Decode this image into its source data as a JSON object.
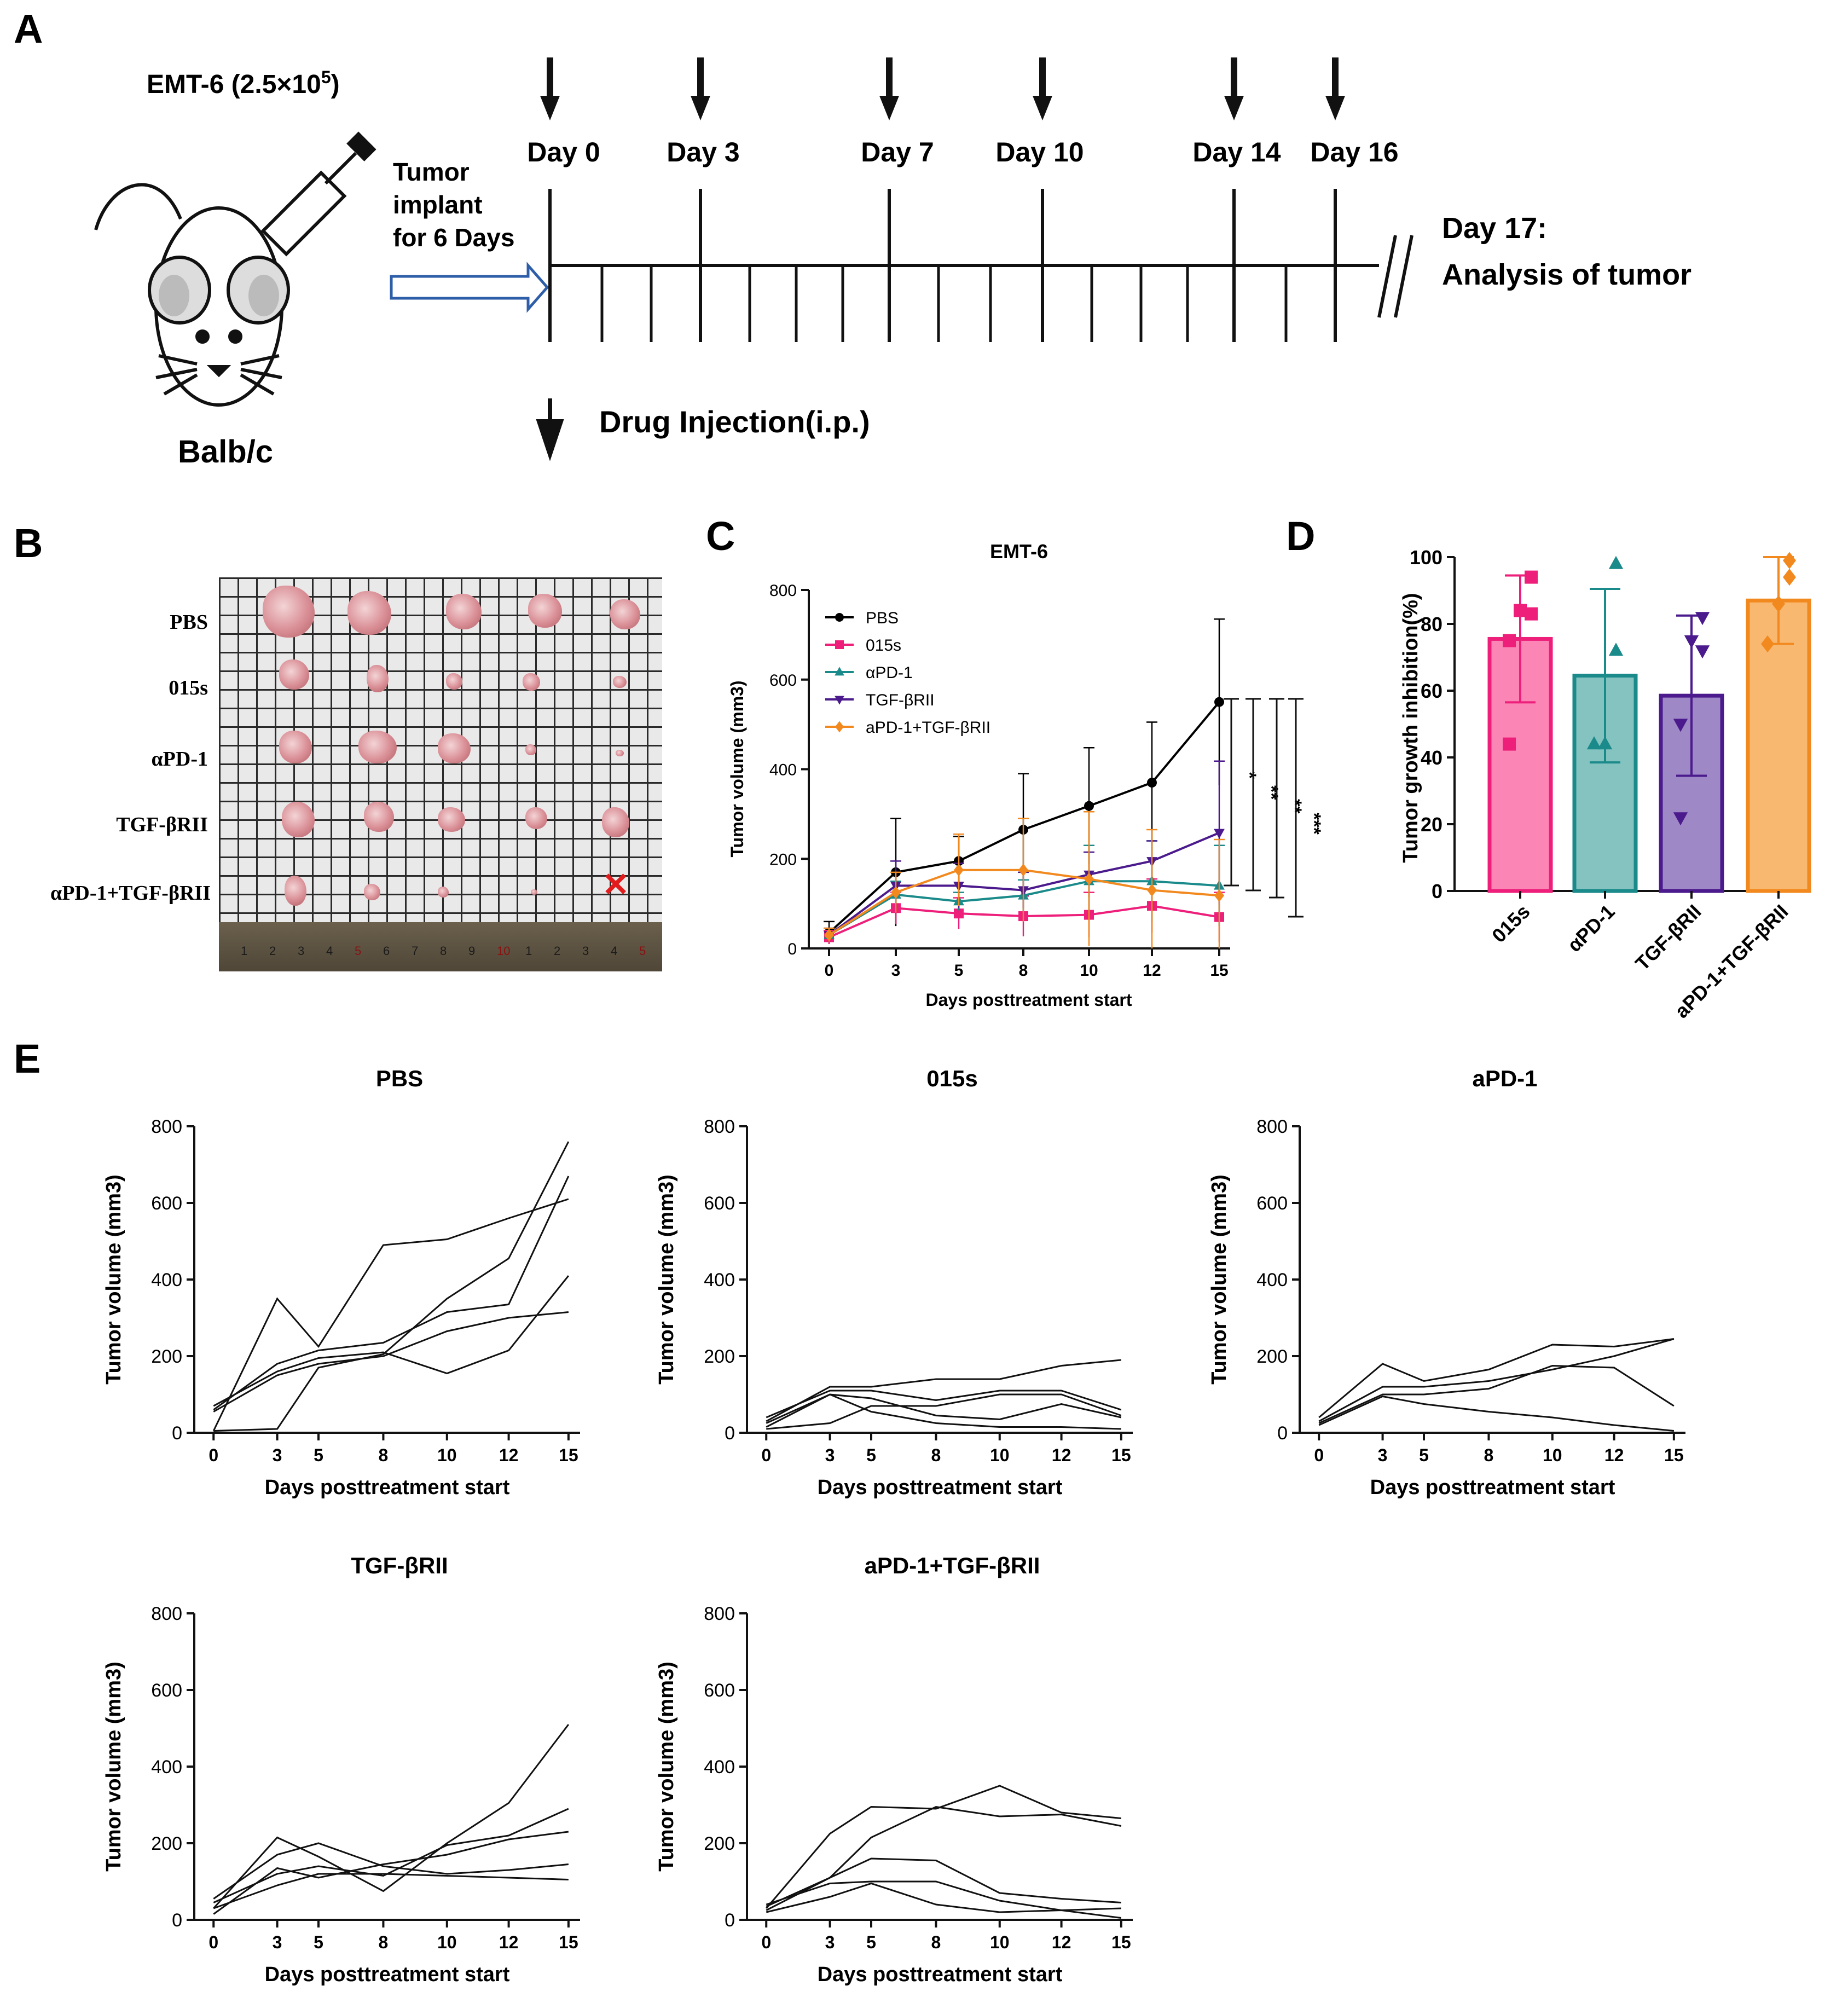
{
  "panel_letters": {
    "a": "A",
    "b": "B",
    "c": "C",
    "d": "D",
    "e": "E"
  },
  "panel_a": {
    "cell_line": "EMT-6 (2.5×10",
    "cell_exp": "5",
    "cell_close": ")",
    "mouse_strain": "Balb/c",
    "implant_lines": [
      "Tumor",
      "implant",
      "for 6 Days"
    ],
    "days": [
      "Day 0",
      "Day 3",
      "Day 7",
      "Day 10",
      "Day 14",
      "Day 16"
    ],
    "endpoint": [
      "Day 17:",
      "Analysis of tumor"
    ],
    "legend": "Drug Injection(i.p.)"
  },
  "panel_b": {
    "rows": [
      "PBS",
      "015s",
      "αPD-1",
      "TGF-βRII",
      "αPD-1+TGF-βRII"
    ],
    "ruler_marks": [
      "1",
      "2",
      "3",
      "4",
      "5",
      "6",
      "7",
      "8",
      "9",
      "10",
      "1",
      "2",
      "3",
      "4",
      "5"
    ],
    "removed_mark": "✕"
  },
  "chart_data": [
    {
      "id": "C",
      "type": "line",
      "title": "EMT-6",
      "xlabel": "Days posttreatment start",
      "ylabel": "Tumor volume (mm3)",
      "x": [
        0,
        3,
        5,
        8,
        10,
        12,
        15
      ],
      "ylim": [
        0,
        800
      ],
      "yticks": [
        0,
        200,
        400,
        600,
        800
      ],
      "series": [
        {
          "name": "PBS",
          "color": "#000000",
          "marker": "circle",
          "values": [
            35,
            170,
            195,
            265,
            318,
            370,
            550
          ],
          "err": [
            25,
            120,
            55,
            125,
            130,
            135,
            185
          ]
        },
        {
          "name": "015s",
          "color": "#ee1f7a",
          "marker": "square",
          "values": [
            25,
            90,
            78,
            72,
            75,
            95,
            70
          ],
          "err": [
            15,
            35,
            35,
            45,
            50,
            60,
            55
          ]
        },
        {
          "name": "αPD-1",
          "color": "#1a8a8a",
          "marker": "triangle",
          "values": [
            30,
            120,
            105,
            118,
            150,
            150,
            140
          ],
          "err": [
            15,
            30,
            20,
            35,
            80,
            90,
            90
          ]
        },
        {
          "name": "TGF-βRII",
          "color": "#4b1a8c",
          "marker": "triangle-down",
          "values": [
            30,
            140,
            140,
            130,
            165,
            195,
            258
          ],
          "err": [
            15,
            55,
            50,
            40,
            50,
            45,
            160
          ]
        },
        {
          "name": "aPD-1+TGF-βRII",
          "color": "#f2891f",
          "marker": "diamond",
          "values": [
            30,
            125,
            175,
            175,
            155,
            130,
            118
          ],
          "err": [
            15,
            45,
            80,
            115,
            150,
            135,
            125
          ]
        }
      ],
      "significance": [
        "*",
        "**",
        "**",
        "***"
      ]
    },
    {
      "id": "D",
      "type": "bar",
      "ylabel": "Tumor growth inhibition(%)",
      "categories": [
        "015s",
        "αPD-1",
        "TGF-βRII",
        "aPD-1+TGF-βRII"
      ],
      "values": [
        75.5,
        64.5,
        58.5,
        87
      ],
      "err": [
        19,
        26,
        24,
        13
      ],
      "colors": [
        "#ee1f7a",
        "#1a8a8a",
        "#4b1a8c",
        "#f2891f"
      ],
      "fills": [
        "#fb86b6",
        "#84c3c0",
        "#9e88c6",
        "#f9b870"
      ],
      "points": [
        [
          94,
          83,
          84,
          75,
          44
        ],
        [
          98,
          72,
          44,
          44
        ],
        [
          82,
          72,
          75,
          50,
          22
        ],
        [
          99,
          94,
          86,
          74
        ]
      ],
      "ylim": [
        0,
        100
      ],
      "yticks": [
        0,
        20,
        40,
        60,
        80,
        100
      ]
    },
    {
      "id": "E",
      "type": "line",
      "xlabel": "Days posttreatment start",
      "ylabel": "Tumor volume (mm3)",
      "x": [
        0,
        3,
        5,
        8,
        10,
        12,
        15
      ],
      "ylim": [
        0,
        800
      ],
      "yticks": [
        0,
        200,
        400,
        600,
        800
      ],
      "panels": [
        {
          "title": "PBS",
          "lines": [
            [
              5,
              350,
              225,
              490,
              505,
              560,
              610
            ],
            [
              5,
              10,
              170,
              205,
              350,
              455,
              760
            ],
            [
              60,
              180,
              215,
              235,
              315,
              335,
              670
            ],
            [
              70,
              160,
              195,
              210,
              155,
              215,
              410
            ],
            [
              55,
              150,
              180,
              200,
              265,
              300,
              315
            ]
          ]
        },
        {
          "title": "015s",
          "lines": [
            [
              30,
              120,
              120,
              140,
              140,
              175,
              190
            ],
            [
              40,
              110,
              110,
              85,
              110,
              110,
              60
            ],
            [
              25,
              100,
              55,
              25,
              15,
              15,
              10
            ],
            [
              15,
              100,
              90,
              45,
              35,
              75,
              40
            ],
            [
              10,
              25,
              70,
              70,
              100,
              100,
              45
            ]
          ]
        },
        {
          "title": "aPD-1",
          "lines": [
            [
              40,
              180,
              135,
              165,
              230,
              225,
              245
            ],
            [
              30,
              120,
              120,
              135,
              165,
              200,
              245
            ],
            [
              25,
              100,
              100,
              115,
              175,
              170,
              70
            ],
            [
              20,
              95,
              75,
              55,
              40,
              20,
              5
            ]
          ]
        },
        {
          "title": "TGF-βRII",
          "lines": [
            [
              30,
              215,
              165,
              75,
              200,
              305,
              510
            ],
            [
              45,
              120,
              140,
              115,
              195,
              220,
              290
            ],
            [
              55,
              170,
              200,
              140,
              120,
              130,
              145
            ],
            [
              15,
              135,
              110,
              145,
              170,
              210,
              230
            ],
            [
              30,
              90,
              120,
              120,
              115,
              110,
              105
            ]
          ]
        },
        {
          "title": "aPD-1+TGF-βRII",
          "lines": [
            [
              30,
              225,
              295,
              290,
              350,
              280,
              265
            ],
            [
              35,
              110,
              215,
              295,
              270,
              275,
              245
            ],
            [
              25,
              110,
              160,
              155,
              70,
              55,
              45
            ],
            [
              40,
              95,
              100,
              100,
              50,
              25,
              30
            ],
            [
              20,
              60,
              95,
              40,
              20,
              25,
              5
            ]
          ]
        }
      ]
    }
  ]
}
